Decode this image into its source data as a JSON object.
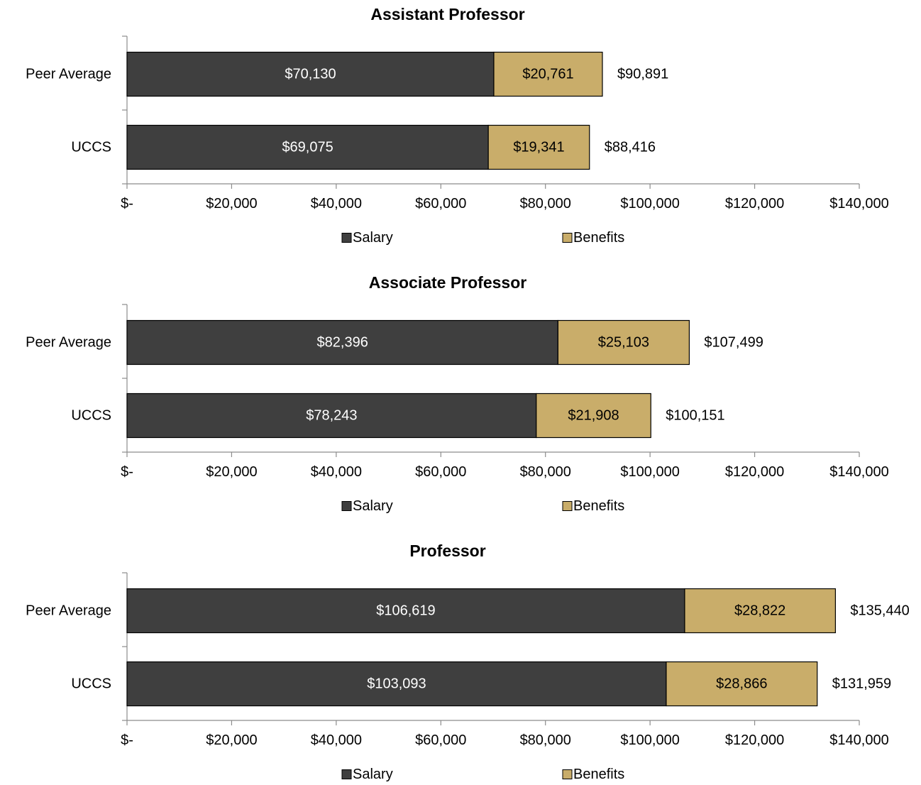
{
  "chart_data": [
    {
      "type": "bar",
      "orientation": "horizontal",
      "stacked": true,
      "title": "Assistant Professor",
      "categories": [
        "Peer Average",
        "UCCS"
      ],
      "series": [
        {
          "name": "Salary",
          "values": [
            70130,
            69075
          ],
          "labels": [
            "$70,130",
            "$69,075"
          ]
        },
        {
          "name": "Benefits",
          "values": [
            20761,
            19341
          ],
          "labels": [
            "$20,761",
            "$19,341"
          ]
        }
      ],
      "totals": [
        90891,
        88416
      ],
      "total_labels": [
        "$90,891",
        "$88,416"
      ],
      "xlim": [
        0,
        140000
      ],
      "xticks": [
        0,
        20000,
        40000,
        60000,
        80000,
        100000,
        120000,
        140000
      ],
      "xtick_labels": [
        "$-",
        "$20,000",
        "$40,000",
        "$60,000",
        "$80,000",
        "$100,000",
        "$120,000",
        "$140,000"
      ],
      "grid": false,
      "legend": "bottom"
    },
    {
      "type": "bar",
      "orientation": "horizontal",
      "stacked": true,
      "title": "Associate Professor",
      "categories": [
        "Peer Average",
        "UCCS"
      ],
      "series": [
        {
          "name": "Salary",
          "values": [
            82396,
            78243
          ],
          "labels": [
            "$82,396",
            "$78,243"
          ]
        },
        {
          "name": "Benefits",
          "values": [
            25103,
            21908
          ],
          "labels": [
            "$25,103",
            "$21,908"
          ]
        }
      ],
      "totals": [
        107499,
        100151
      ],
      "total_labels": [
        "$107,499",
        "$100,151"
      ],
      "xlim": [
        0,
        140000
      ],
      "xticks": [
        0,
        20000,
        40000,
        60000,
        80000,
        100000,
        120000,
        140000
      ],
      "xtick_labels": [
        "$-",
        "$20,000",
        "$40,000",
        "$60,000",
        "$80,000",
        "$100,000",
        "$120,000",
        "$140,000"
      ],
      "grid": false,
      "legend": "bottom"
    },
    {
      "type": "bar",
      "orientation": "horizontal",
      "stacked": true,
      "title": "Professor",
      "categories": [
        "Peer Average",
        "UCCS"
      ],
      "series": [
        {
          "name": "Salary",
          "values": [
            106619,
            103093
          ],
          "labels": [
            "$106,619",
            "$103,093"
          ]
        },
        {
          "name": "Benefits",
          "values": [
            28822,
            28866
          ],
          "labels": [
            "$28,822",
            "$28,866"
          ]
        }
      ],
      "totals": [
        135440,
        131959
      ],
      "total_labels": [
        "$135,440",
        "$131,959"
      ],
      "xlim": [
        0,
        140000
      ],
      "xticks": [
        0,
        20000,
        40000,
        60000,
        80000,
        100000,
        120000,
        140000
      ],
      "xtick_labels": [
        "$-",
        "$20,000",
        "$40,000",
        "$60,000",
        "$80,000",
        "$100,000",
        "$120,000",
        "$140,000"
      ],
      "grid": false,
      "legend": "bottom"
    }
  ],
  "colors": {
    "salary": "#3f3f3f",
    "benefits": "#c9ad6a",
    "axis": "#8c8c8c",
    "text": "#000000",
    "salary_label": "#ffffff"
  }
}
